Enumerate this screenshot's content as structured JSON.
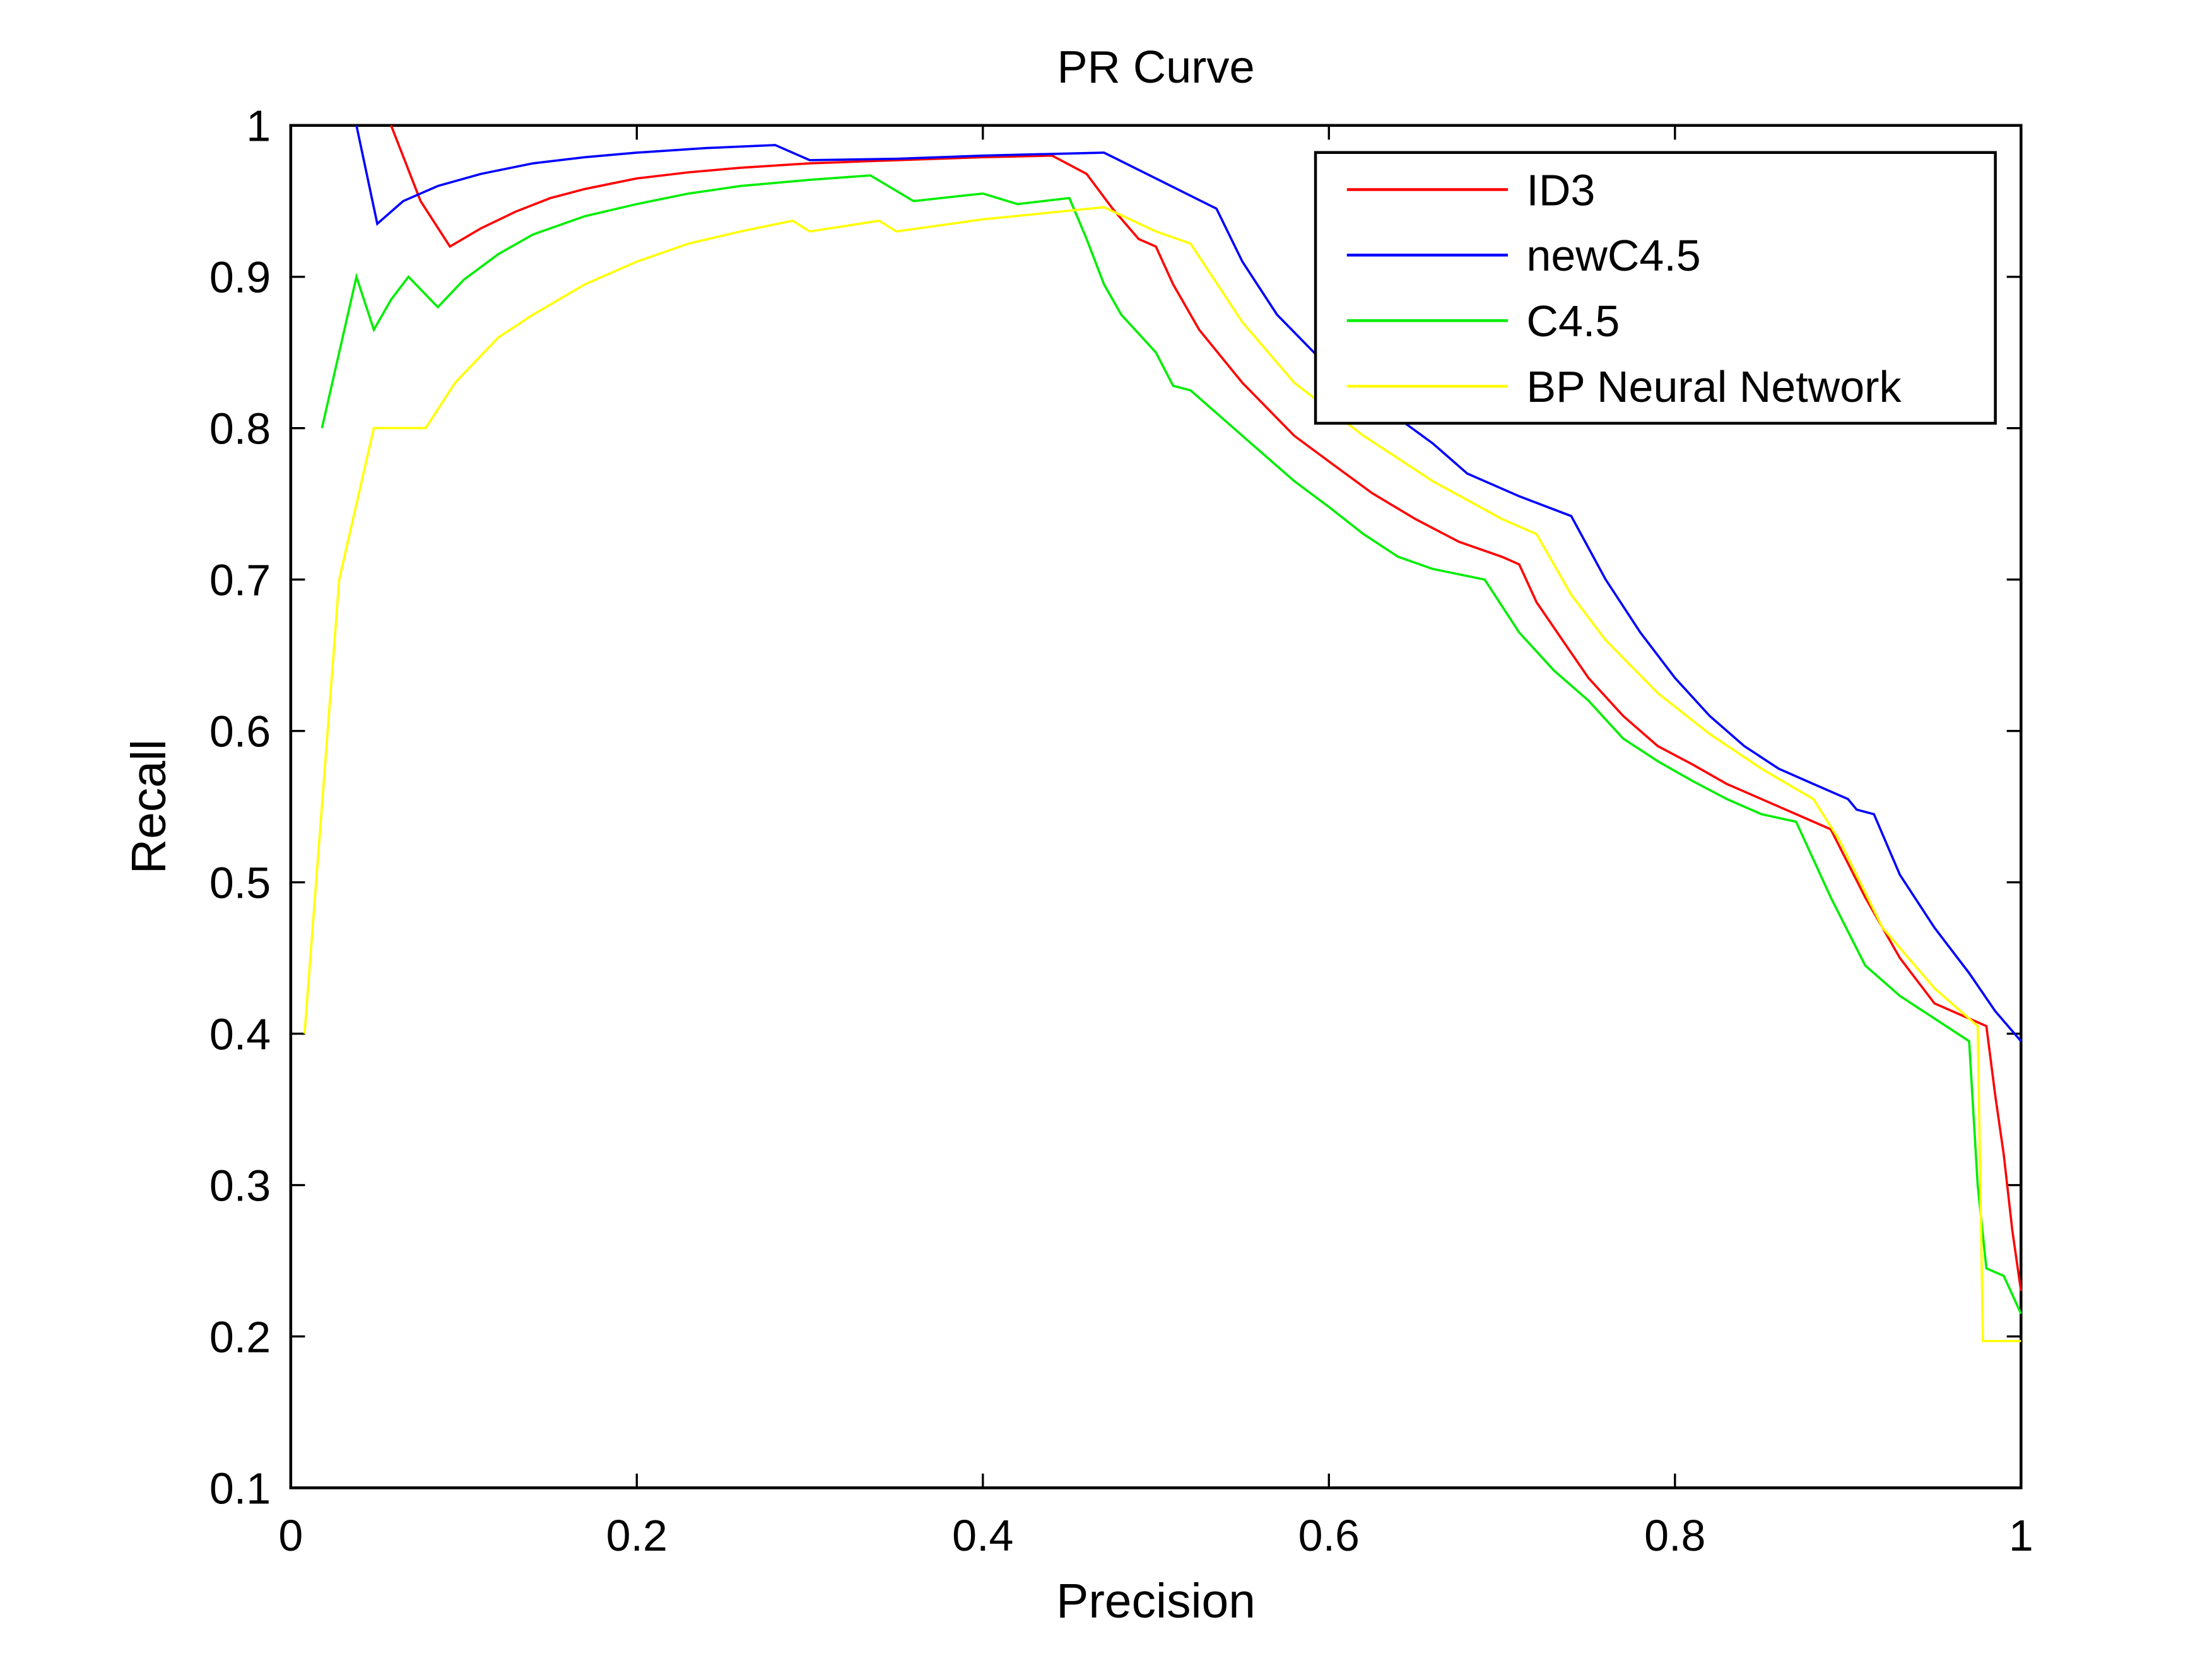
{
  "chart_data": {
    "type": "line",
    "title": "PR Curve",
    "xlabel": "Precision",
    "ylabel": "Recall",
    "xlim": [
      0,
      1
    ],
    "ylim": [
      0.1,
      1
    ],
    "grid": false,
    "legend_position": "top-right",
    "xticks": [
      0,
      0.2,
      0.4,
      0.6,
      0.8,
      1
    ],
    "xtick_labels": [
      "0",
      "0.2",
      "0.4",
      "0.6",
      "0.8",
      "1"
    ],
    "yticks": [
      0.1,
      0.2,
      0.3,
      0.4,
      0.5,
      0.6,
      0.7,
      0.8,
      0.9,
      1
    ],
    "ytick_labels": [
      "0.1",
      "0.2",
      "0.3",
      "0.4",
      "0.5",
      "0.6",
      "0.7",
      "0.8",
      "0.9",
      "1"
    ],
    "series": [
      {
        "name": "ID3",
        "color": "#ff0000",
        "x": [
          0.058,
          0.075,
          0.092,
          0.11,
          0.13,
          0.15,
          0.17,
          0.2,
          0.23,
          0.26,
          0.3,
          0.35,
          0.4,
          0.44,
          0.46,
          0.475,
          0.49,
          0.5,
          0.51,
          0.525,
          0.55,
          0.58,
          0.6,
          0.625,
          0.65,
          0.675,
          0.7,
          0.71,
          0.72,
          0.735,
          0.75,
          0.77,
          0.79,
          0.81,
          0.83,
          0.85,
          0.87,
          0.89,
          0.91,
          0.93,
          0.95,
          0.97,
          0.98,
          0.985,
          0.99,
          0.995,
          1.0
        ],
        "y": [
          1.0,
          0.95,
          0.92,
          0.932,
          0.943,
          0.952,
          0.958,
          0.965,
          0.969,
          0.972,
          0.975,
          0.977,
          0.979,
          0.98,
          0.968,
          0.945,
          0.925,
          0.92,
          0.895,
          0.865,
          0.83,
          0.795,
          0.778,
          0.757,
          0.74,
          0.725,
          0.715,
          0.71,
          0.685,
          0.66,
          0.635,
          0.61,
          0.59,
          0.578,
          0.565,
          0.555,
          0.545,
          0.535,
          0.49,
          0.45,
          0.42,
          0.41,
          0.405,
          0.36,
          0.32,
          0.27,
          0.23
        ]
      },
      {
        "name": "newC4.5",
        "color": "#0000ff",
        "x": [
          0.038,
          0.05,
          0.065,
          0.085,
          0.11,
          0.14,
          0.17,
          0.2,
          0.24,
          0.28,
          0.3,
          0.35,
          0.4,
          0.47,
          0.5,
          0.535,
          0.55,
          0.57,
          0.6,
          0.63,
          0.66,
          0.68,
          0.71,
          0.74,
          0.76,
          0.78,
          0.8,
          0.82,
          0.84,
          0.86,
          0.88,
          0.9,
          0.905,
          0.915,
          0.93,
          0.95,
          0.97,
          0.985,
          1.0
        ],
        "y": [
          1.0,
          0.935,
          0.95,
          0.96,
          0.968,
          0.975,
          0.979,
          0.982,
          0.985,
          0.987,
          0.977,
          0.978,
          0.98,
          0.982,
          0.965,
          0.945,
          0.91,
          0.875,
          0.84,
          0.815,
          0.79,
          0.77,
          0.755,
          0.742,
          0.7,
          0.665,
          0.635,
          0.61,
          0.59,
          0.575,
          0.565,
          0.555,
          0.548,
          0.545,
          0.505,
          0.47,
          0.44,
          0.415,
          0.395
        ]
      },
      {
        "name": "C4.5",
        "color": "#00ee00",
        "x": [
          0.018,
          0.038,
          0.048,
          0.058,
          0.068,
          0.085,
          0.1,
          0.12,
          0.14,
          0.17,
          0.2,
          0.23,
          0.26,
          0.3,
          0.335,
          0.36,
          0.4,
          0.42,
          0.45,
          0.46,
          0.47,
          0.48,
          0.5,
          0.51,
          0.52,
          0.55,
          0.58,
          0.6,
          0.62,
          0.64,
          0.66,
          0.69,
          0.71,
          0.73,
          0.75,
          0.77,
          0.79,
          0.81,
          0.83,
          0.85,
          0.87,
          0.89,
          0.91,
          0.93,
          0.95,
          0.97,
          0.975,
          0.98,
          0.99,
          1.0
        ],
        "y": [
          0.8,
          0.9,
          0.865,
          0.885,
          0.9,
          0.88,
          0.898,
          0.915,
          0.928,
          0.94,
          0.948,
          0.955,
          0.96,
          0.964,
          0.967,
          0.95,
          0.955,
          0.948,
          0.952,
          0.925,
          0.895,
          0.875,
          0.85,
          0.828,
          0.825,
          0.795,
          0.765,
          0.748,
          0.73,
          0.715,
          0.707,
          0.7,
          0.665,
          0.64,
          0.62,
          0.595,
          0.58,
          0.567,
          0.555,
          0.545,
          0.54,
          0.49,
          0.445,
          0.425,
          0.41,
          0.395,
          0.3,
          0.245,
          0.24,
          0.215
        ]
      },
      {
        "name": "BP Neural Network",
        "color": "#ffff00",
        "x": [
          0.008,
          0.028,
          0.048,
          0.078,
          0.095,
          0.12,
          0.14,
          0.17,
          0.2,
          0.23,
          0.26,
          0.29,
          0.3,
          0.34,
          0.35,
          0.4,
          0.47,
          0.5,
          0.52,
          0.55,
          0.58,
          0.62,
          0.66,
          0.7,
          0.72,
          0.74,
          0.76,
          0.79,
          0.82,
          0.85,
          0.88,
          0.895,
          0.92,
          0.95,
          0.975,
          0.978,
          0.99,
          1.0
        ],
        "y": [
          0.4,
          0.7,
          0.8,
          0.8,
          0.83,
          0.86,
          0.875,
          0.895,
          0.91,
          0.922,
          0.93,
          0.937,
          0.93,
          0.937,
          0.93,
          0.938,
          0.946,
          0.93,
          0.922,
          0.87,
          0.83,
          0.795,
          0.765,
          0.74,
          0.73,
          0.69,
          0.66,
          0.625,
          0.598,
          0.575,
          0.555,
          0.528,
          0.47,
          0.43,
          0.405,
          0.197,
          0.197,
          0.197
        ]
      }
    ]
  }
}
